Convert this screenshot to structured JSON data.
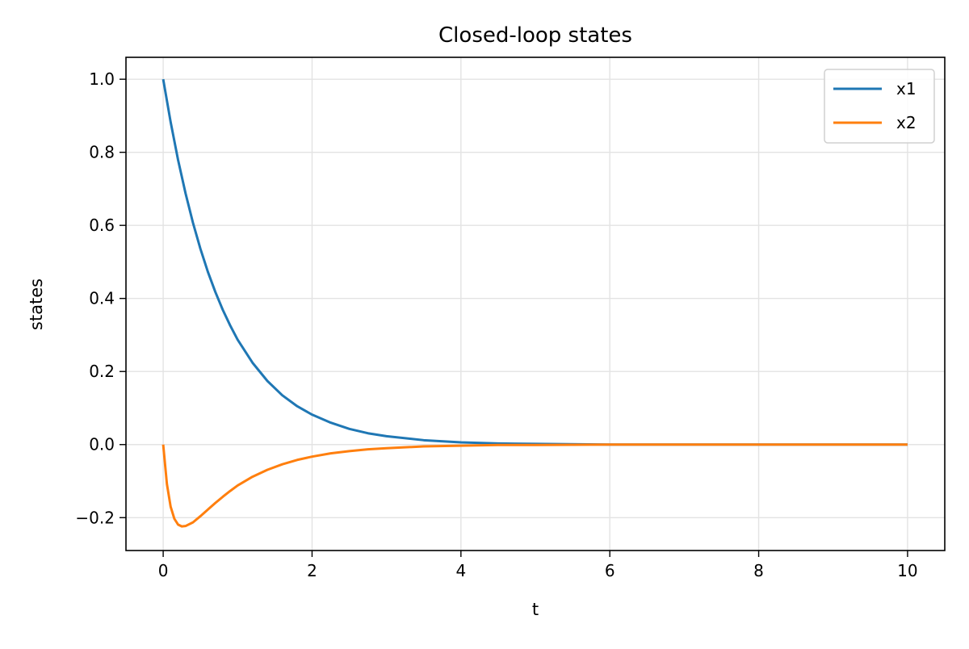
{
  "chart_data": {
    "type": "line",
    "title": "Closed-loop states",
    "xlabel": "t",
    "ylabel": "states",
    "xlim": [
      -0.5,
      10.5
    ],
    "ylim": [
      -0.29,
      1.06
    ],
    "xticks": [
      0,
      2,
      4,
      6,
      8,
      10
    ],
    "xtick_labels": [
      "0",
      "2",
      "4",
      "6",
      "8",
      "10"
    ],
    "yticks": [
      -0.2,
      0.0,
      0.2,
      0.4,
      0.6,
      0.8,
      1.0
    ],
    "ytick_labels": [
      "−0.2",
      "0.0",
      "0.2",
      "0.4",
      "0.6",
      "0.8",
      "1.0"
    ],
    "grid": true,
    "legend_position": "top-right",
    "series": [
      {
        "name": "x1",
        "color": "#1f77b4",
        "x": [
          0,
          0.1,
          0.2,
          0.3,
          0.4,
          0.5,
          0.6,
          0.7,
          0.8,
          0.9,
          1.0,
          1.2,
          1.4,
          1.6,
          1.8,
          2.0,
          2.25,
          2.5,
          2.75,
          3.0,
          3.5,
          4.0,
          4.5,
          5.0,
          6.0,
          7.0,
          8.0,
          9.0,
          10.0
        ],
        "y": [
          1.0,
          0.883,
          0.779,
          0.688,
          0.607,
          0.536,
          0.473,
          0.418,
          0.369,
          0.326,
          0.287,
          0.224,
          0.174,
          0.135,
          0.105,
          0.082,
          0.06,
          0.043,
          0.031,
          0.023,
          0.012,
          0.006,
          0.003,
          0.002,
          0.0,
          0.0,
          0.0,
          0.0,
          0.0
        ]
      },
      {
        "name": "x2",
        "color": "#ff7f0e",
        "x": [
          0,
          0.05,
          0.1,
          0.15,
          0.2,
          0.25,
          0.3,
          0.4,
          0.5,
          0.6,
          0.7,
          0.8,
          0.9,
          1.0,
          1.2,
          1.4,
          1.6,
          1.8,
          2.0,
          2.25,
          2.5,
          2.75,
          3.0,
          3.5,
          4.0,
          4.5,
          5.0,
          6.0,
          7.0,
          8.0,
          9.0,
          10.0
        ],
        "y": [
          0.0,
          -0.108,
          -0.17,
          -0.203,
          -0.219,
          -0.224,
          -0.223,
          -0.213,
          -0.196,
          -0.178,
          -0.16,
          -0.143,
          -0.127,
          -0.112,
          -0.088,
          -0.069,
          -0.054,
          -0.042,
          -0.033,
          -0.024,
          -0.018,
          -0.013,
          -0.01,
          -0.005,
          -0.003,
          -0.001,
          -0.001,
          0.0,
          0.0,
          0.0,
          0.0,
          0.0
        ]
      }
    ]
  }
}
